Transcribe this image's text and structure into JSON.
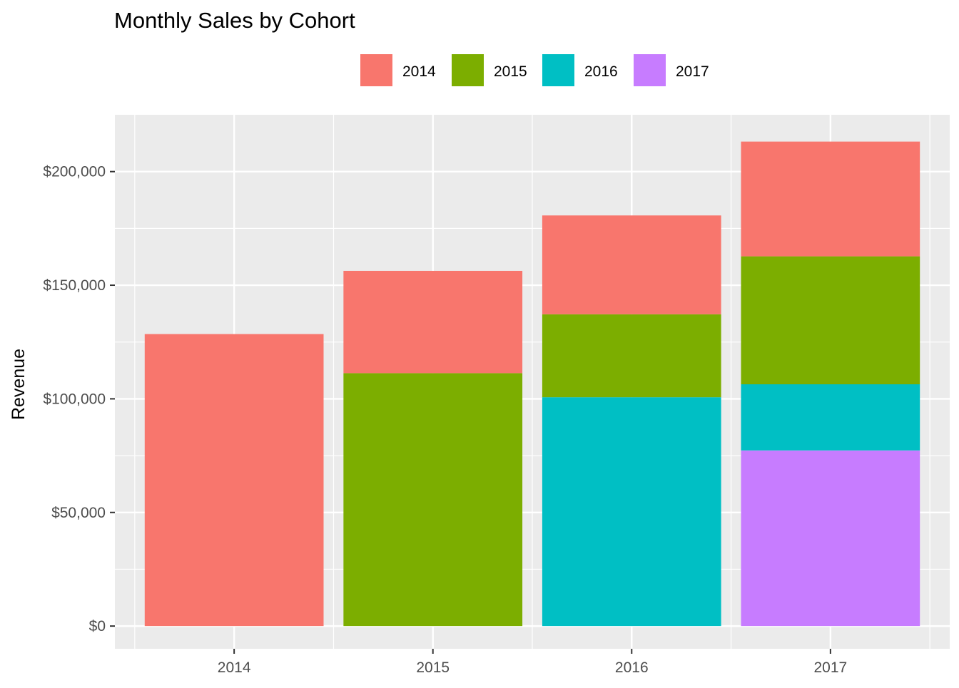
{
  "chart_data": {
    "type": "bar",
    "stacked": true,
    "title": "Monthly Sales by Cohort",
    "xlabel": "",
    "ylabel": "Revenue",
    "categories": [
      "2014",
      "2015",
      "2016",
      "2017"
    ],
    "series": [
      {
        "name": "2014",
        "color": "#F8766D",
        "values": [
          128500,
          45000,
          43500,
          50500
        ]
      },
      {
        "name": "2015",
        "color": "#7CAE00",
        "values": [
          0,
          111300,
          36500,
          56300
        ]
      },
      {
        "name": "2016",
        "color": "#00BFC4",
        "values": [
          0,
          0,
          100700,
          29100
        ]
      },
      {
        "name": "2017",
        "color": "#C77CFF",
        "values": [
          0,
          0,
          0,
          77300
        ]
      }
    ],
    "stack_order_bottom_to_top": [
      "2017",
      "2016",
      "2015",
      "2014"
    ],
    "ylim": [
      -10000,
      225000
    ],
    "y_ticks": [
      0,
      50000,
      100000,
      150000,
      200000
    ],
    "y_tick_labels": [
      "$0",
      "$50,000",
      "$100,000",
      "$150,000",
      "$200,000"
    ],
    "grid": true,
    "legend_position": "top",
    "panel_background": "#EBEBEB"
  }
}
